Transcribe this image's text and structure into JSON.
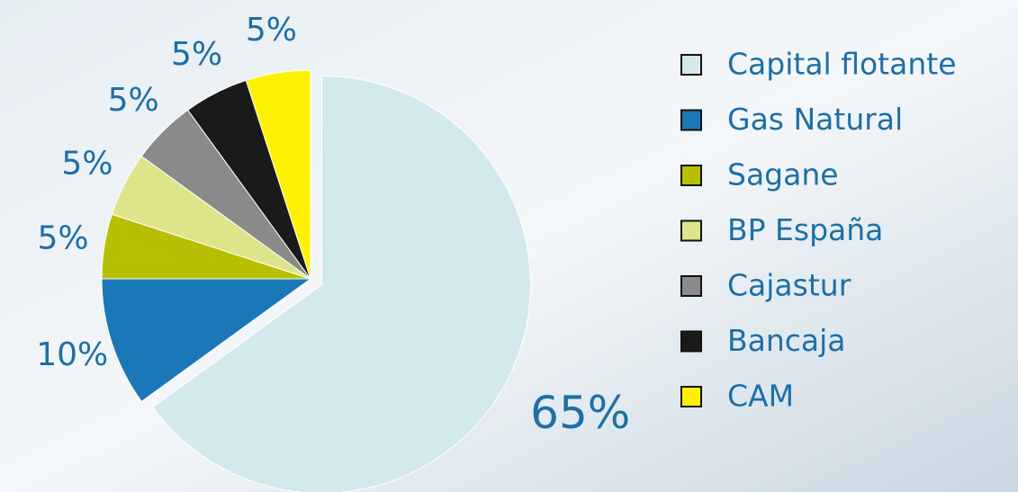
{
  "chart_data": {
    "type": "pie",
    "categories": [
      "Capital flotante",
      "Gas Natural",
      "Sagane",
      "BP España",
      "Cajastur",
      "Bancaja",
      "CAM"
    ],
    "values": [
      65,
      10,
      5,
      5,
      5,
      5,
      5
    ],
    "value_labels": [
      "65%",
      "10%",
      "5%",
      "5%",
      "5%",
      "5%",
      "5%"
    ],
    "colors": [
      "#d4e9ee",
      "#1b78b8",
      "#b7c000",
      "#dde48a",
      "#8a8a8a",
      "#1a1a1a",
      "#fff200"
    ],
    "legend": "right"
  }
}
